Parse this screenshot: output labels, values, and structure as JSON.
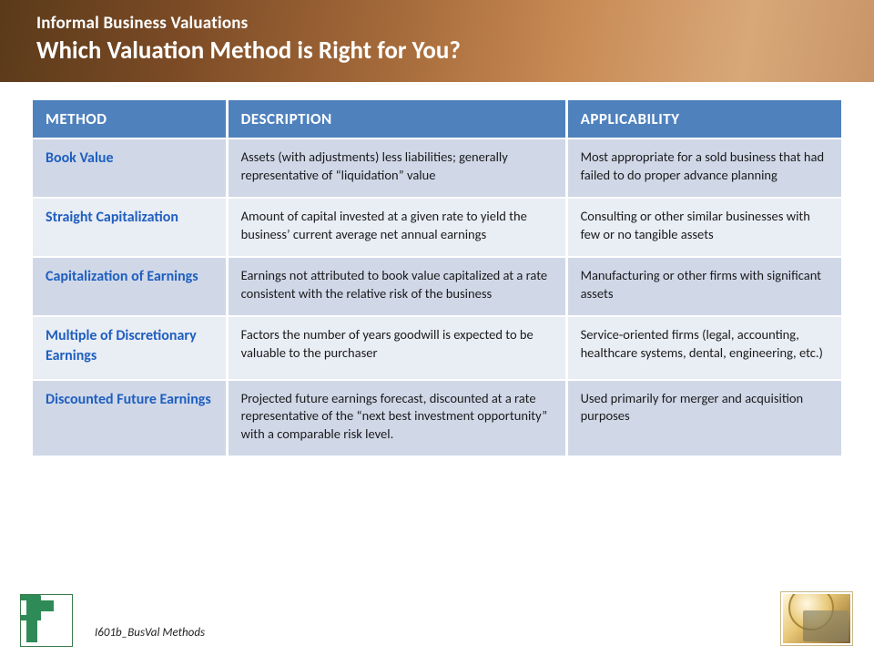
{
  "header": {
    "subtitle": "Informal Business Valuations",
    "title": "Which Valuation Method is Right for You?",
    "gradient_colors": [
      "#5a3a1a",
      "#7a4a25",
      "#a56a3a",
      "#c88a55",
      "#d8a878",
      "#c89568"
    ]
  },
  "table": {
    "type": "table",
    "header_bg": "#4f81bd",
    "header_text_color": "#ffffff",
    "method_text_color": "#1f5fbf",
    "row_colors": [
      "#d0d8e8",
      "#e9edf4"
    ],
    "border_color": "#ffffff",
    "columns": [
      {
        "key": "method",
        "label": "METHOD",
        "width_pct": 24
      },
      {
        "key": "description",
        "label": "DESCRIPTION",
        "width_pct": 42
      },
      {
        "key": "applicability",
        "label": "APPLICABILITY",
        "width_pct": 34
      }
    ],
    "rows": [
      {
        "method": "Book Value",
        "description": "Assets (with adjustments) less liabilities; generally representative of “liquidation” value",
        "applicability": "Most appropriate for a sold business that had failed to do proper advance planning"
      },
      {
        "method": "Straight Capitalization",
        "description": "Amount of capital invested at a given rate to yield the business’ current average net annual earnings",
        "applicability": "Consulting or other similar businesses with few or no tangible assets"
      },
      {
        "method": "Capitalization of Earnings",
        "description": "Earnings not attributed to book value capitalized at a rate consistent with the relative risk of the business",
        "applicability": "Manufacturing or other firms with significant assets"
      },
      {
        "method": "Multiple  of Discretionary Earnings",
        "description": "Factors the number of years goodwill is expected to be valuable to the purchaser",
        "applicability": "Service-oriented firms (legal, accounting, healthcare systems, dental, engineering, etc.)"
      },
      {
        "method": "Discounted Future Earnings",
        "description": "Projected future earnings forecast, discounted at a rate representative of the “next best investment opportunity” with a comparable risk level.",
        "applicability": "Used primarily for merger and acquisition purposes"
      }
    ]
  },
  "footer": {
    "code": "I601b_BusVal Methods",
    "logo_color": "#2e8b57"
  }
}
